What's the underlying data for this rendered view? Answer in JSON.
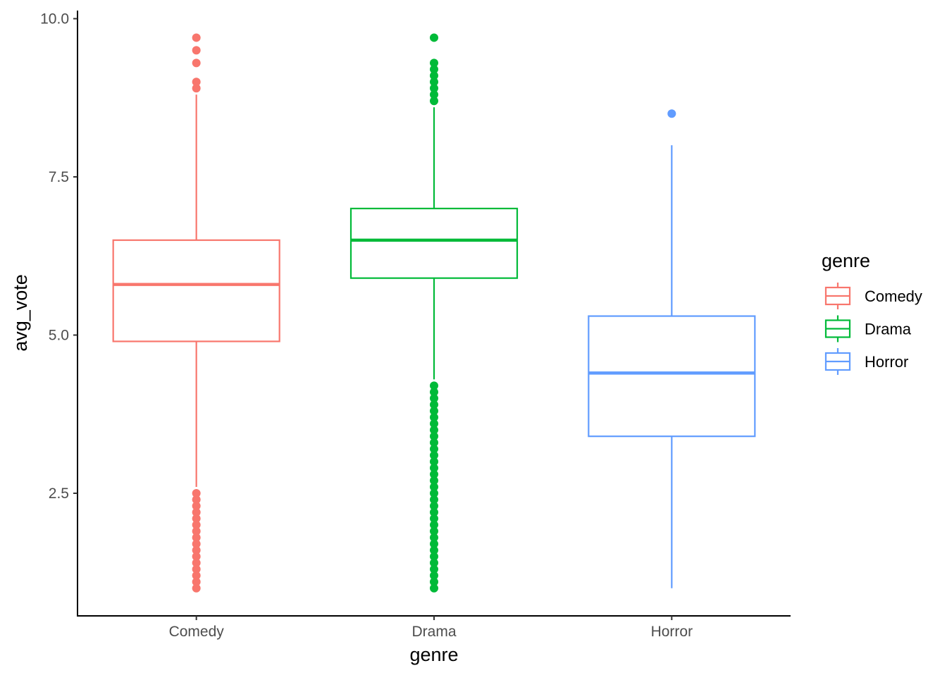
{
  "chart_data": {
    "type": "boxplot",
    "xlabel": "genre",
    "ylabel": "avg_vote",
    "ylim": [
      0.6,
      10.1
    ],
    "yticks": [
      2.5,
      5.0,
      7.5,
      10.0
    ],
    "ytick_labels": [
      "2.5",
      "5.0",
      "7.5",
      "10.0"
    ],
    "grid": false,
    "legend_position": "right",
    "legend_title": "genre",
    "categories": [
      "Comedy",
      "Drama",
      "Horror"
    ],
    "series": [
      {
        "name": "Comedy",
        "color": "#F8766D",
        "whisker_low": 2.6,
        "q1": 4.9,
        "median": 5.8,
        "q3": 6.5,
        "whisker_high": 8.8,
        "outliers": [
          1.0,
          1.1,
          1.2,
          1.3,
          1.4,
          1.5,
          1.6,
          1.7,
          1.8,
          1.9,
          2.0,
          2.1,
          2.2,
          2.3,
          2.4,
          2.5,
          8.9,
          9.0,
          9.3,
          9.5,
          9.7
        ]
      },
      {
        "name": "Drama",
        "color": "#00BA38",
        "whisker_low": 4.3,
        "q1": 5.9,
        "median": 6.5,
        "q3": 7.0,
        "whisker_high": 8.6,
        "outliers": [
          1.0,
          1.1,
          1.2,
          1.3,
          1.4,
          1.5,
          1.6,
          1.7,
          1.8,
          1.9,
          2.0,
          2.1,
          2.2,
          2.3,
          2.4,
          2.5,
          2.6,
          2.7,
          2.8,
          2.9,
          3.0,
          3.1,
          3.2,
          3.3,
          3.4,
          3.5,
          3.6,
          3.7,
          3.8,
          3.9,
          4.0,
          4.1,
          4.2,
          8.7,
          8.8,
          8.9,
          9.0,
          9.1,
          9.2,
          9.3,
          9.7
        ]
      },
      {
        "name": "Horror",
        "color": "#619CFF",
        "whisker_low": 1.0,
        "q1": 3.4,
        "median": 4.4,
        "q3": 5.3,
        "whisker_high": 8.0,
        "outliers": [
          8.5
        ]
      }
    ]
  }
}
